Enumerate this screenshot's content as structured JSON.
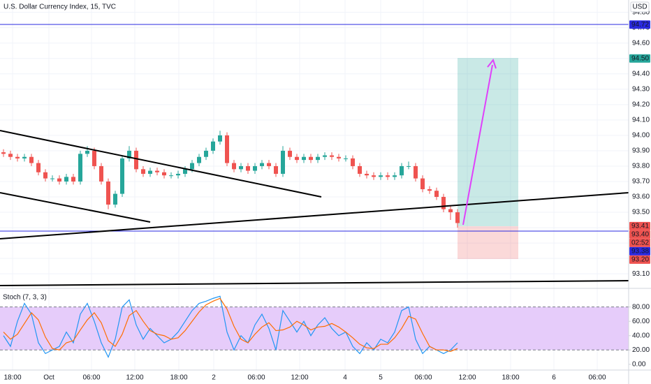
{
  "chart_data": [
    {
      "type": "candlestick",
      "title": "U.S. Dollar Currency Index, 15, TVC",
      "currency": "USD",
      "x": [
        0.5,
        1.5,
        2.5,
        3.5,
        4.5,
        5.5,
        6.5,
        7.5,
        8.5,
        9.5,
        10.5,
        11.5,
        12.5,
        13.5,
        14.5,
        15.5,
        16.5,
        17.5,
        18.5,
        19.5,
        20.5,
        21.5,
        22.5,
        23.5,
        24.5,
        25.5,
        26.5,
        27.5,
        28.5,
        29.5,
        30.5,
        31.5,
        32.5,
        33.5,
        34.5,
        35.5,
        36.5,
        37.5,
        38.5,
        39.5,
        40.5,
        41.5,
        42.5,
        43.5,
        44.5,
        45.5,
        46.5,
        47.5,
        48.5,
        49.5,
        50.5,
        51.5,
        52.5,
        53.5,
        54.5,
        55.5,
        56.5,
        57.5,
        58.5,
        59.5,
        60.5,
        61.5,
        62.5,
        63.5,
        64.5,
        65.5
      ],
      "open": [
        93.89,
        93.88,
        93.86,
        93.85,
        93.86,
        93.82,
        93.76,
        93.72,
        93.72,
        93.7,
        93.73,
        93.7,
        93.88,
        93.9,
        93.8,
        93.7,
        93.55,
        93.62,
        93.85,
        93.9,
        93.78,
        93.75,
        93.77,
        93.76,
        93.74,
        93.74,
        93.75,
        93.78,
        93.82,
        93.86,
        93.9,
        93.96,
        94.0,
        93.82,
        93.78,
        93.8,
        93.77,
        93.8,
        93.82,
        93.8,
        93.75,
        93.9,
        93.86,
        93.84,
        93.86,
        93.84,
        93.86,
        93.87,
        93.86,
        93.85,
        93.85,
        93.8,
        93.75,
        93.74,
        93.73,
        93.74,
        93.73,
        93.74,
        93.8,
        93.8,
        93.72,
        93.65,
        93.64,
        93.6,
        93.52,
        93.5
      ],
      "high": [
        93.91,
        93.9,
        93.88,
        93.88,
        93.88,
        93.84,
        93.78,
        93.74,
        93.74,
        93.75,
        93.75,
        93.9,
        93.93,
        93.92,
        93.82,
        93.72,
        93.64,
        93.87,
        93.93,
        93.92,
        93.8,
        93.79,
        93.79,
        93.78,
        93.76,
        93.77,
        93.8,
        93.84,
        93.88,
        93.92,
        93.98,
        94.03,
        94.02,
        93.84,
        93.82,
        93.82,
        93.82,
        93.84,
        93.84,
        93.82,
        93.93,
        93.92,
        93.88,
        93.88,
        93.88,
        93.88,
        93.89,
        93.89,
        93.88,
        93.87,
        93.87,
        93.82,
        93.77,
        93.76,
        93.76,
        93.76,
        93.76,
        93.82,
        93.83,
        93.82,
        93.74,
        93.67,
        93.66,
        93.62,
        93.54,
        93.52
      ],
      "low": [
        93.86,
        93.84,
        93.83,
        93.83,
        93.8,
        93.74,
        93.7,
        93.7,
        93.68,
        93.68,
        93.68,
        93.68,
        93.86,
        93.78,
        93.68,
        93.52,
        93.53,
        93.6,
        93.83,
        93.76,
        93.73,
        93.73,
        93.74,
        93.72,
        93.72,
        93.72,
        93.73,
        93.76,
        93.8,
        93.84,
        93.88,
        93.94,
        93.8,
        93.76,
        93.76,
        93.75,
        93.75,
        93.78,
        93.78,
        93.73,
        93.73,
        93.84,
        93.82,
        93.82,
        93.82,
        93.82,
        93.84,
        93.84,
        93.83,
        93.83,
        93.78,
        93.73,
        93.72,
        93.71,
        93.71,
        93.71,
        93.71,
        93.72,
        93.78,
        93.7,
        93.63,
        93.62,
        93.58,
        93.5,
        93.45,
        93.4
      ],
      "close": [
        93.88,
        93.86,
        93.85,
        93.86,
        93.82,
        93.76,
        93.72,
        93.72,
        93.7,
        93.73,
        93.7,
        93.88,
        93.9,
        93.8,
        93.7,
        93.55,
        93.62,
        93.85,
        93.9,
        93.78,
        93.75,
        93.77,
        93.76,
        93.74,
        93.74,
        93.75,
        93.78,
        93.82,
        93.86,
        93.9,
        93.96,
        94.0,
        93.82,
        93.78,
        93.8,
        93.77,
        93.8,
        93.82,
        93.8,
        93.75,
        93.9,
        93.86,
        93.84,
        93.86,
        93.84,
        93.86,
        93.87,
        93.86,
        93.85,
        93.85,
        93.8,
        93.75,
        93.74,
        93.73,
        93.74,
        93.73,
        93.74,
        93.8,
        93.8,
        93.72,
        93.65,
        93.64,
        93.6,
        93.52,
        93.5,
        93.43
      ],
      "up_color": "#26a69a",
      "down_color": "#ef5350",
      "xlim": [
        0,
        90
      ],
      "xticks": [
        {
          "value": 1.8,
          "label": "18:00"
        },
        {
          "value": 7.0,
          "label": "Oct"
        },
        {
          "value": 13.1,
          "label": "06:00"
        },
        {
          "value": 19.3,
          "label": "12:00"
        },
        {
          "value": 25.6,
          "label": "18:00"
        },
        {
          "value": 30.6,
          "label": "2"
        },
        {
          "value": 36.7,
          "label": "06:00"
        },
        {
          "value": 42.9,
          "label": "12:00"
        },
        {
          "value": 49.4,
          "label": "4"
        },
        {
          "value": 54.5,
          "label": "5"
        },
        {
          "value": 60.6,
          "label": "06:00"
        },
        {
          "value": 66.9,
          "label": "12:00"
        },
        {
          "value": 73.1,
          "label": "18:00"
        },
        {
          "value": 79.3,
          "label": "6"
        },
        {
          "value": 85.5,
          "label": "06:00"
        }
      ],
      "ylim": [
        93.01,
        94.88
      ],
      "yticks": [
        {
          "value": 94.8,
          "label": "94.80"
        },
        {
          "value": 94.7,
          "label": "94.70"
        },
        {
          "value": 94.6,
          "label": "94.60"
        },
        {
          "value": 94.5,
          "label": "94.50"
        },
        {
          "value": 94.4,
          "label": "94.40"
        },
        {
          "value": 94.3,
          "label": "94.30"
        },
        {
          "value": 94.2,
          "label": "94.20"
        },
        {
          "value": 94.1,
          "label": "94.10"
        },
        {
          "value": 94.0,
          "label": "94.00"
        },
        {
          "value": 93.9,
          "label": "93.90"
        },
        {
          "value": 93.8,
          "label": "93.80"
        },
        {
          "value": 93.7,
          "label": "93.70"
        },
        {
          "value": 93.6,
          "label": "93.60"
        },
        {
          "value": 93.5,
          "label": "93.50"
        },
        {
          "value": 93.4,
          "label": "93.40"
        },
        {
          "value": 93.3,
          "label": "93.30"
        },
        {
          "value": 93.2,
          "label": "93.20"
        },
        {
          "value": 93.1,
          "label": "93.10"
        }
      ],
      "grid": true,
      "price_labels": [
        {
          "value": 94.72,
          "label": "94.72",
          "color": "#2a2ae0"
        },
        {
          "value": 94.5,
          "label": "94.50",
          "color": "#26a69a"
        },
        {
          "value": 93.41,
          "label": "93.41",
          "color": "#ef5350"
        },
        {
          "value": 93.4,
          "label": "93.40",
          "color": "#ef5350"
        },
        {
          "value": 93.38,
          "label": "93.38",
          "color": "#2a2ae0"
        },
        {
          "value": 93.2,
          "label": "93.20",
          "color": "#ef5350"
        }
      ],
      "countdown": "02:52"
    },
    {
      "type": "line",
      "title": "Stoch (7, 3, 3)",
      "series": [
        {
          "color": "#2196f3",
          "values": [
            40,
            25,
            60,
            85,
            70,
            30,
            15,
            20,
            25,
            45,
            30,
            70,
            85,
            60,
            30,
            10,
            35,
            80,
            90,
            55,
            35,
            50,
            40,
            30,
            35,
            45,
            60,
            75,
            85,
            88,
            92,
            95,
            45,
            20,
            40,
            30,
            55,
            70,
            50,
            20,
            75,
            60,
            45,
            60,
            40,
            55,
            65,
            50,
            40,
            45,
            25,
            15,
            30,
            20,
            35,
            30,
            45,
            75,
            80,
            35,
            15,
            25,
            20,
            15,
            20,
            30
          ]
        },
        {
          "color": "#ff6d00",
          "values": [
            45,
            35,
            42,
            57,
            72,
            62,
            38,
            22,
            20,
            30,
            33,
            48,
            62,
            72,
            58,
            33,
            25,
            42,
            68,
            75,
            60,
            47,
            42,
            40,
            35,
            37,
            47,
            60,
            73,
            83,
            88,
            92,
            77,
            53,
            35,
            30,
            42,
            52,
            58,
            47,
            48,
            52,
            60,
            55,
            48,
            52,
            53,
            57,
            52,
            45,
            37,
            28,
            23,
            22,
            28,
            28,
            37,
            50,
            67,
            63,
            43,
            25,
            20,
            20,
            18,
            22
          ]
        }
      ],
      "ylim": [
        -8,
        106
      ],
      "yticks": [
        {
          "value": 80,
          "label": "80.00"
        },
        {
          "value": 60,
          "label": "60.00"
        },
        {
          "value": 40,
          "label": "40.00"
        },
        {
          "value": 20,
          "label": "20.00"
        },
        {
          "value": 0,
          "label": "0.00"
        }
      ],
      "band": [
        20,
        80
      ],
      "band_color": "#e6ccfa"
    }
  ]
}
